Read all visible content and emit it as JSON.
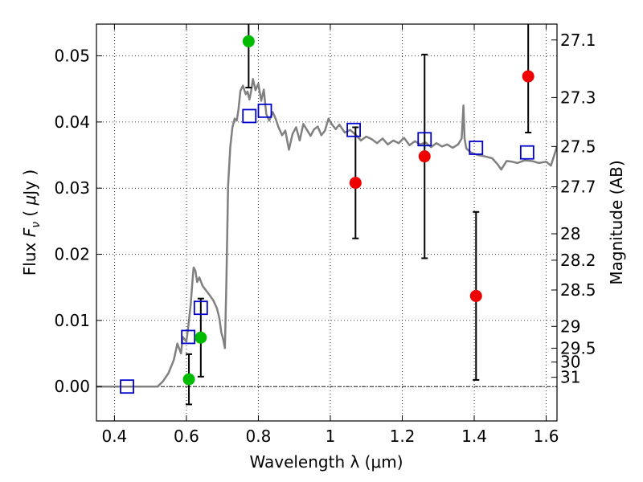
{
  "chart_data": {
    "type": "scatter",
    "xlabel": "Wavelength  λ (μm)",
    "ylabel": "Flux  F_ν  ( μJy )",
    "ylabel_parts": [
      "Flux  ",
      "F",
      "ν",
      "  ( ",
      "μ",
      "Jy )"
    ],
    "y2label": "Magnitude (AB)",
    "xlim": [
      0.35,
      1.63
    ],
    "ylim": [
      -0.0052,
      0.0548
    ],
    "x_ticks": [
      0.4,
      0.6,
      0.8,
      1.0,
      1.2,
      1.4,
      1.6
    ],
    "x_tick_labels": [
      "0.4",
      "0.6",
      "0.8",
      "1",
      "1.2",
      "1.4",
      "1.6"
    ],
    "y_ticks": [
      0.0,
      0.01,
      0.02,
      0.03,
      0.04,
      0.05
    ],
    "y_tick_labels": [
      "0.00",
      "0.01",
      "0.02",
      "0.03",
      "0.04",
      "0.05"
    ],
    "y2_ticks": [
      {
        "label": "27.1",
        "flux": 0.0524
      },
      {
        "label": "27.3",
        "flux": 0.0437
      },
      {
        "label": "27.5",
        "flux": 0.0363
      },
      {
        "label": "27.7",
        "flux": 0.0302
      },
      {
        "label": "28",
        "flux": 0.0231
      },
      {
        "label": "28.2",
        "flux": 0.0191
      },
      {
        "label": "28.5",
        "flux": 0.0146
      },
      {
        "label": "29",
        "flux": 0.0091
      },
      {
        "label": "29.5",
        "flux": 0.0058
      },
      {
        "label": "30",
        "flux": 0.0037
      },
      {
        "label": "31",
        "flux": 0.0014
      }
    ],
    "grid": true,
    "colors": {
      "model": "#808080",
      "model_photometry": "#0000cc",
      "detections": "#00bb00",
      "upper_limits": "#ee0000",
      "errorbar": "#000000"
    },
    "series": [
      {
        "style": "line",
        "points": [
          [
            0.35,
            0.0
          ],
          [
            0.52,
            0.0
          ],
          [
            0.535,
            0.0008
          ],
          [
            0.55,
            0.002
          ],
          [
            0.565,
            0.004
          ],
          [
            0.575,
            0.0065
          ],
          [
            0.585,
            0.005
          ],
          [
            0.59,
            0.0075
          ],
          [
            0.6,
            0.0068
          ],
          [
            0.605,
            0.009
          ],
          [
            0.612,
            0.0125
          ],
          [
            0.618,
            0.0168
          ],
          [
            0.62,
            0.018
          ],
          [
            0.625,
            0.0175
          ],
          [
            0.63,
            0.0158
          ],
          [
            0.636,
            0.0165
          ],
          [
            0.645,
            0.0152
          ],
          [
            0.655,
            0.0145
          ],
          [
            0.665,
            0.0138
          ],
          [
            0.675,
            0.013
          ],
          [
            0.685,
            0.0118
          ],
          [
            0.692,
            0.0102
          ],
          [
            0.697,
            0.0082
          ],
          [
            0.703,
            0.007
          ],
          [
            0.707,
            0.0058
          ],
          [
            0.711,
            0.0154
          ],
          [
            0.716,
            0.0304
          ],
          [
            0.722,
            0.0362
          ],
          [
            0.728,
            0.0392
          ],
          [
            0.734,
            0.0405
          ],
          [
            0.74,
            0.0402
          ],
          [
            0.745,
            0.042
          ],
          [
            0.75,
            0.0447
          ],
          [
            0.757,
            0.0455
          ],
          [
            0.765,
            0.0442
          ],
          [
            0.77,
            0.0446
          ],
          [
            0.775,
            0.0434
          ],
          [
            0.78,
            0.0447
          ],
          [
            0.785,
            0.0465
          ],
          [
            0.792,
            0.0448
          ],
          [
            0.8,
            0.0458
          ],
          [
            0.808,
            0.0432
          ],
          [
            0.815,
            0.0449
          ],
          [
            0.822,
            0.0412
          ],
          [
            0.83,
            0.0402
          ],
          [
            0.84,
            0.0415
          ],
          [
            0.848,
            0.0405
          ],
          [
            0.856,
            0.0392
          ],
          [
            0.866,
            0.038
          ],
          [
            0.875,
            0.0387
          ],
          [
            0.885,
            0.0358
          ],
          [
            0.895,
            0.0382
          ],
          [
            0.905,
            0.0392
          ],
          [
            0.915,
            0.0372
          ],
          [
            0.925,
            0.0397
          ],
          [
            0.935,
            0.0388
          ],
          [
            0.945,
            0.0379
          ],
          [
            0.955,
            0.0389
          ],
          [
            0.965,
            0.0393
          ],
          [
            0.975,
            0.038
          ],
          [
            0.985,
            0.0387
          ],
          [
            0.995,
            0.0405
          ],
          [
            1.005,
            0.0396
          ],
          [
            1.015,
            0.0389
          ],
          [
            1.025,
            0.0396
          ],
          [
            1.04,
            0.0384
          ],
          [
            1.055,
            0.0388
          ],
          [
            1.07,
            0.0381
          ],
          [
            1.085,
            0.0372
          ],
          [
            1.1,
            0.0378
          ],
          [
            1.115,
            0.0374
          ],
          [
            1.13,
            0.0368
          ],
          [
            1.145,
            0.0375
          ],
          [
            1.16,
            0.0366
          ],
          [
            1.175,
            0.0372
          ],
          [
            1.19,
            0.0368
          ],
          [
            1.205,
            0.0376
          ],
          [
            1.22,
            0.0365
          ],
          [
            1.235,
            0.0371
          ],
          [
            1.25,
            0.0366
          ],
          [
            1.265,
            0.0369
          ],
          [
            1.28,
            0.0362
          ],
          [
            1.295,
            0.0368
          ],
          [
            1.31,
            0.0363
          ],
          [
            1.325,
            0.0366
          ],
          [
            1.34,
            0.0361
          ],
          [
            1.355,
            0.0366
          ],
          [
            1.365,
            0.0375
          ],
          [
            1.37,
            0.0425
          ],
          [
            1.373,
            0.0375
          ],
          [
            1.378,
            0.036
          ],
          [
            1.39,
            0.0354
          ],
          [
            1.41,
            0.035
          ],
          [
            1.43,
            0.0348
          ],
          [
            1.45,
            0.0345
          ],
          [
            1.465,
            0.0336
          ],
          [
            1.475,
            0.0328
          ],
          [
            1.49,
            0.0341
          ],
          [
            1.505,
            0.034
          ],
          [
            1.52,
            0.0338
          ],
          [
            1.54,
            0.0342
          ],
          [
            1.56,
            0.0341
          ],
          [
            1.58,
            0.0338
          ],
          [
            1.6,
            0.034
          ],
          [
            1.613,
            0.0334
          ],
          [
            1.622,
            0.0349
          ],
          [
            1.63,
            0.0363
          ]
        ]
      },
      {
        "style": "open-square",
        "points": [
          [
            0.435,
            0.0
          ],
          [
            0.605,
            0.0075
          ],
          [
            0.64,
            0.0119
          ],
          [
            0.775,
            0.0409
          ],
          [
            0.818,
            0.0417
          ],
          [
            1.065,
            0.0388
          ],
          [
            1.262,
            0.0374
          ],
          [
            1.405,
            0.0361
          ],
          [
            1.547,
            0.0354
          ]
        ]
      },
      {
        "style": "filled-circle",
        "points": [
          [
            0.607,
            0.0011
          ],
          [
            0.64,
            0.0074
          ],
          [
            0.773,
            0.0522
          ]
        ],
        "errors": [
          0.0038,
          0.0059,
          0.007
        ]
      },
      {
        "style": "filled-circle",
        "points": [
          [
            1.07,
            0.0308
          ],
          [
            1.262,
            0.0348
          ],
          [
            1.405,
            0.0137
          ],
          [
            1.55,
            0.0469
          ]
        ],
        "errors": [
          0.0084,
          0.0154,
          0.0127,
          0.0085
        ]
      }
    ]
  }
}
